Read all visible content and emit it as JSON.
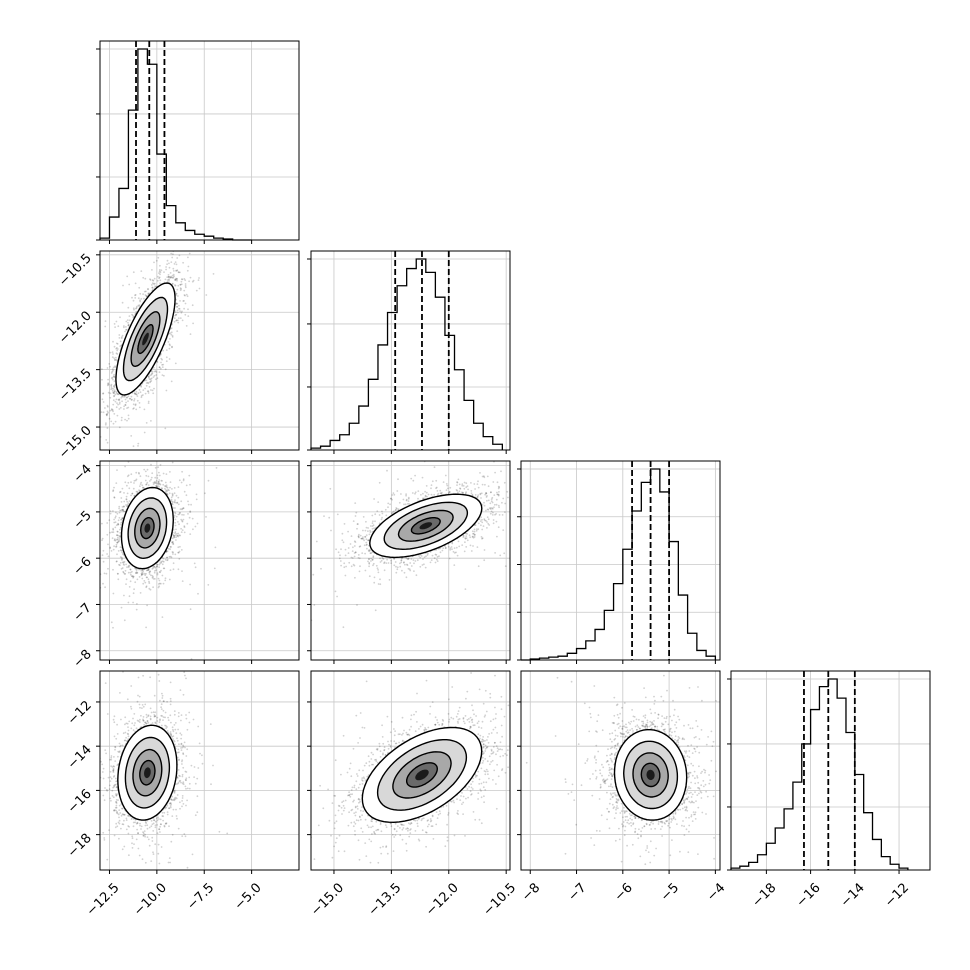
{
  "chart_data": {
    "type": "corner",
    "title": "",
    "grid": true,
    "parameters": [
      {
        "name": "",
        "range": [
          -13.0,
          -2.5
        ],
        "ticks": [
          -12.5,
          -10.0,
          -7.5,
          -5.0
        ],
        "tick_labels": [
          "−12.5",
          "−10.0",
          "−7.5",
          "−5.0"
        ]
      },
      {
        "name": "",
        "range": [
          -15.6,
          -10.4
        ],
        "ticks": [
          -15.0,
          -13.5,
          -12.0,
          -10.5
        ],
        "tick_labels": [
          "−15.0",
          "−13.5",
          "−12.0",
          "−10.5"
        ]
      },
      {
        "name": "",
        "range": [
          -8.2,
          -3.9
        ],
        "ticks": [
          -8,
          -7,
          -6,
          -5,
          -4
        ],
        "tick_labels": [
          "−8",
          "−7",
          "−6",
          "−5",
          "−4"
        ]
      },
      {
        "name": "",
        "range": [
          -19.6,
          -10.6
        ],
        "ticks": [
          -18,
          -16,
          -14,
          -12
        ],
        "tick_labels": [
          "−18",
          "−16",
          "−14",
          "−12"
        ]
      }
    ],
    "marginals": [
      {
        "quantiles": [
          -11.1,
          -10.4,
          -9.6
        ],
        "bins": [
          -13.0,
          -12.5,
          -12.0,
          -11.5,
          -11.0,
          -10.5,
          -10.0,
          -9.5,
          -9.0,
          -8.5,
          -8.0,
          -7.5,
          -7.0,
          -6.5,
          -6.0,
          -5.5,
          -5.0
        ],
        "counts": [
          0.01,
          0.12,
          0.27,
          0.68,
          1.0,
          0.92,
          0.45,
          0.18,
          0.09,
          0.05,
          0.03,
          0.02,
          0.01,
          0.005,
          0.0,
          0.0
        ],
        "yticks": [
          0.0,
          0.33,
          0.66,
          1.0
        ]
      },
      {
        "quantiles": [
          -13.4,
          -12.7,
          -12.0
        ],
        "bins": [
          -15.6,
          -15.35,
          -15.1,
          -14.85,
          -14.6,
          -14.35,
          -14.1,
          -13.85,
          -13.6,
          -13.35,
          -13.1,
          -12.85,
          -12.6,
          -12.35,
          -12.1,
          -11.85,
          -11.6,
          -11.35,
          -11.1,
          -10.85,
          -10.6
        ],
        "counts": [
          0.01,
          0.02,
          0.05,
          0.08,
          0.14,
          0.23,
          0.37,
          0.55,
          0.72,
          0.86,
          0.95,
          1.0,
          0.93,
          0.8,
          0.6,
          0.42,
          0.26,
          0.14,
          0.07,
          0.03
        ],
        "yticks": [
          0.0,
          0.33,
          0.66,
          1.0
        ]
      },
      {
        "quantiles": [
          -5.8,
          -5.4,
          -5.0
        ],
        "bins": [
          -8.2,
          -8.0,
          -7.8,
          -7.6,
          -7.4,
          -7.2,
          -7.0,
          -6.8,
          -6.6,
          -6.4,
          -6.2,
          -6.0,
          -5.8,
          -5.6,
          -5.4,
          -5.2,
          -5.0,
          -4.8,
          -4.6,
          -4.4,
          -4.2,
          -4.0
        ],
        "counts": [
          0.0,
          0.005,
          0.01,
          0.015,
          0.02,
          0.035,
          0.06,
          0.1,
          0.16,
          0.26,
          0.4,
          0.58,
          0.78,
          0.93,
          1.0,
          0.88,
          0.62,
          0.34,
          0.14,
          0.05,
          0.02
        ],
        "yticks": [
          0.0,
          0.25,
          0.5,
          0.75,
          1.0
        ]
      },
      {
        "quantiles": [
          -16.3,
          -15.2,
          -14.0
        ],
        "bins": [
          -19.6,
          -19.2,
          -18.8,
          -18.4,
          -18.0,
          -17.6,
          -17.2,
          -16.8,
          -16.4,
          -16.0,
          -15.6,
          -15.2,
          -14.8,
          -14.4,
          -14.0,
          -13.6,
          -13.2,
          -12.8,
          -12.4,
          -12.0,
          -11.6
        ],
        "counts": [
          0.01,
          0.02,
          0.04,
          0.08,
          0.14,
          0.22,
          0.32,
          0.46,
          0.66,
          0.84,
          0.96,
          1.0,
          0.9,
          0.72,
          0.5,
          0.3,
          0.16,
          0.07,
          0.03,
          0.01
        ],
        "yticks": [
          0.0,
          0.33,
          0.66,
          1.0
        ]
      }
    ],
    "pairs": [
      {
        "row": 1,
        "col": 0,
        "mean": [
          -10.6,
          -12.7
        ],
        "sd": [
          0.8,
          0.75
        ],
        "corr": 0.72
      },
      {
        "row": 2,
        "col": 0,
        "mean": [
          -10.5,
          -5.35
        ],
        "sd": [
          0.7,
          0.45
        ],
        "corr": 0.2
      },
      {
        "row": 2,
        "col": 1,
        "mean": [
          -12.6,
          -5.3
        ],
        "sd": [
          0.75,
          0.35
        ],
        "corr": 0.55
      },
      {
        "row": 3,
        "col": 0,
        "mean": [
          -10.5,
          -15.2
        ],
        "sd": [
          0.8,
          1.1
        ],
        "corr": 0.15
      },
      {
        "row": 3,
        "col": 1,
        "mean": [
          -12.7,
          -15.3
        ],
        "sd": [
          0.8,
          1.1
        ],
        "corr": 0.5
      },
      {
        "row": 3,
        "col": 2,
        "mean": [
          -5.4,
          -15.3
        ],
        "sd": [
          0.4,
          1.05
        ],
        "corr": -0.05
      }
    ]
  }
}
